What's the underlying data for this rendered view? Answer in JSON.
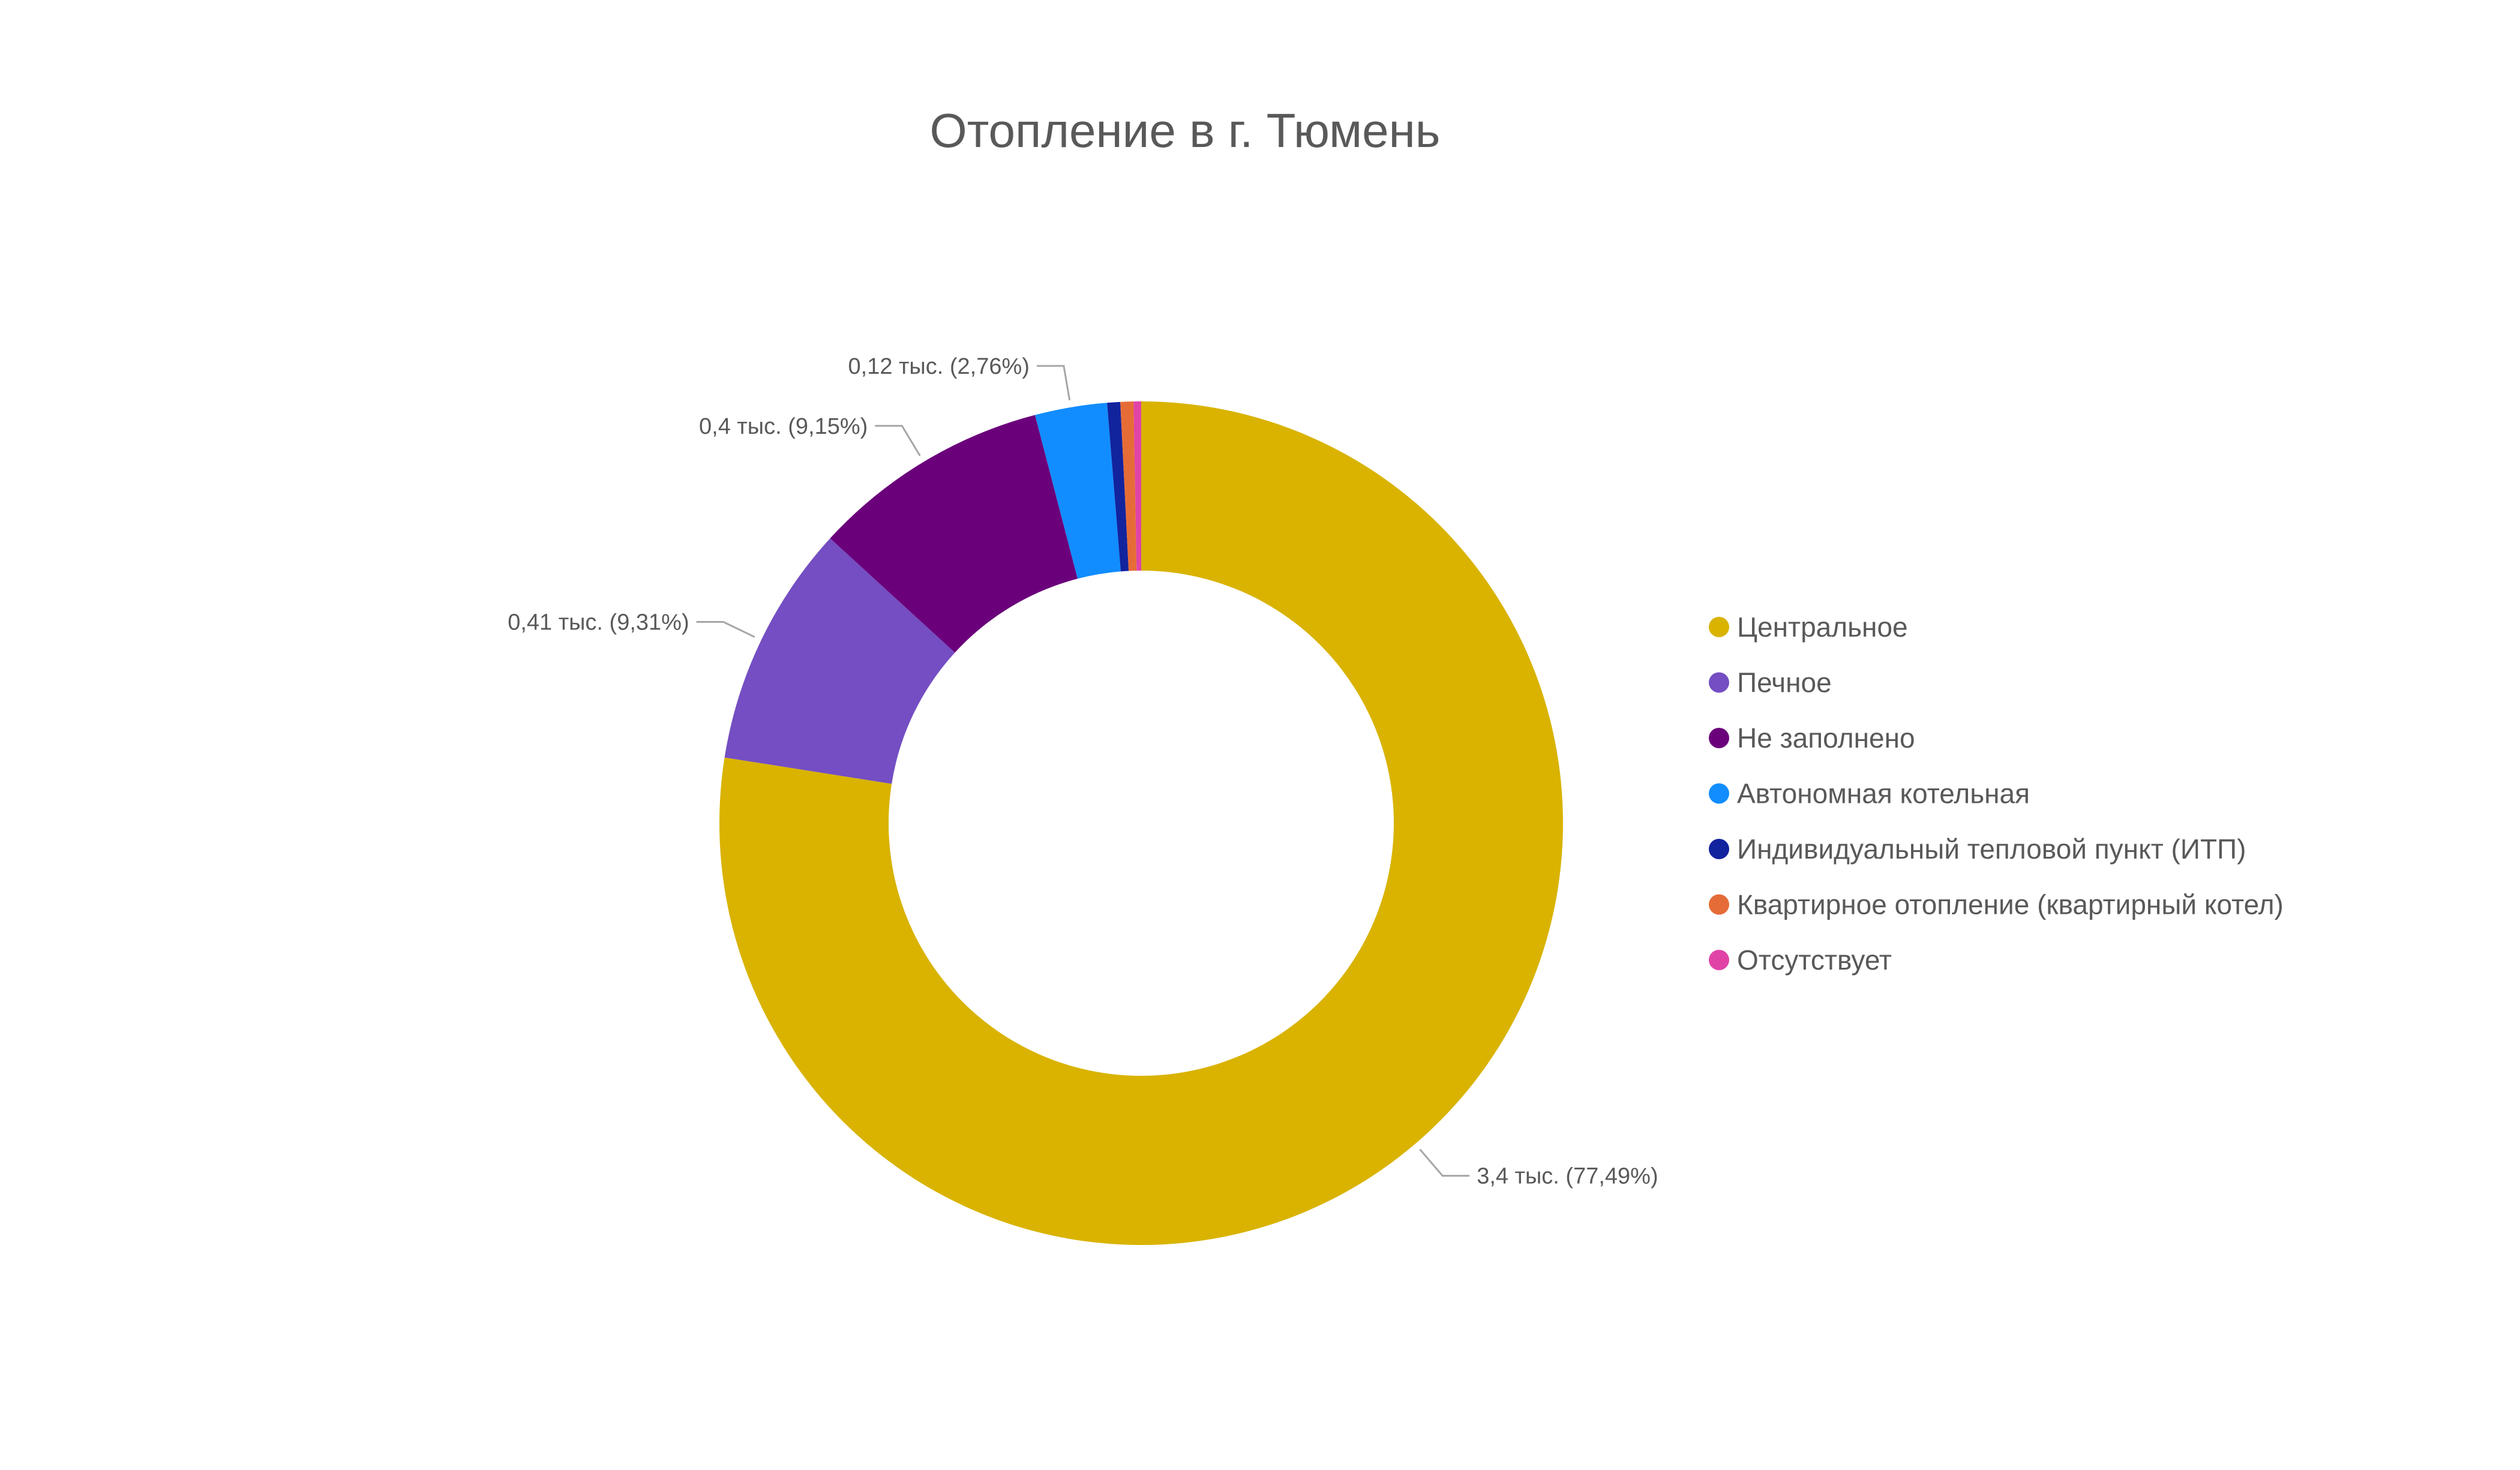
{
  "chart_data": {
    "type": "pie",
    "donut": true,
    "title": "Отопление в г. Тюмень",
    "legend_position": "right",
    "slices": [
      {
        "name": "Центральное",
        "value": 3.4,
        "percent": 77.49,
        "label": "3,4 тыс. (77,49%)",
        "color": "#D9B300"
      },
      {
        "name": "Печное",
        "value": 0.41,
        "percent": 9.31,
        "label": "0,41 тыс. (9,31%)",
        "color": "#744EC2"
      },
      {
        "name": "Не заполнено",
        "value": 0.4,
        "percent": 9.15,
        "label": "0,4 тыс. (9,15%)",
        "color": "#6B007B"
      },
      {
        "name": "Автономная котельная",
        "value": 0.12,
        "percent": 2.76,
        "label": "0,12 тыс. (2,76%)",
        "color": "#118DFF"
      },
      {
        "name": "Индивидуальный тепловой пункт (ИТП)",
        "value": 0.02,
        "percent": 0.5,
        "label": "",
        "color": "#12239E"
      },
      {
        "name": "Квартирное отопление (квартирный котел)",
        "value": 0.02,
        "percent": 0.5,
        "label": "",
        "color": "#E66C37"
      },
      {
        "name": "Отсутствует",
        "value": 0.01,
        "percent": 0.29,
        "label": "",
        "color": "#E044A7"
      }
    ]
  }
}
